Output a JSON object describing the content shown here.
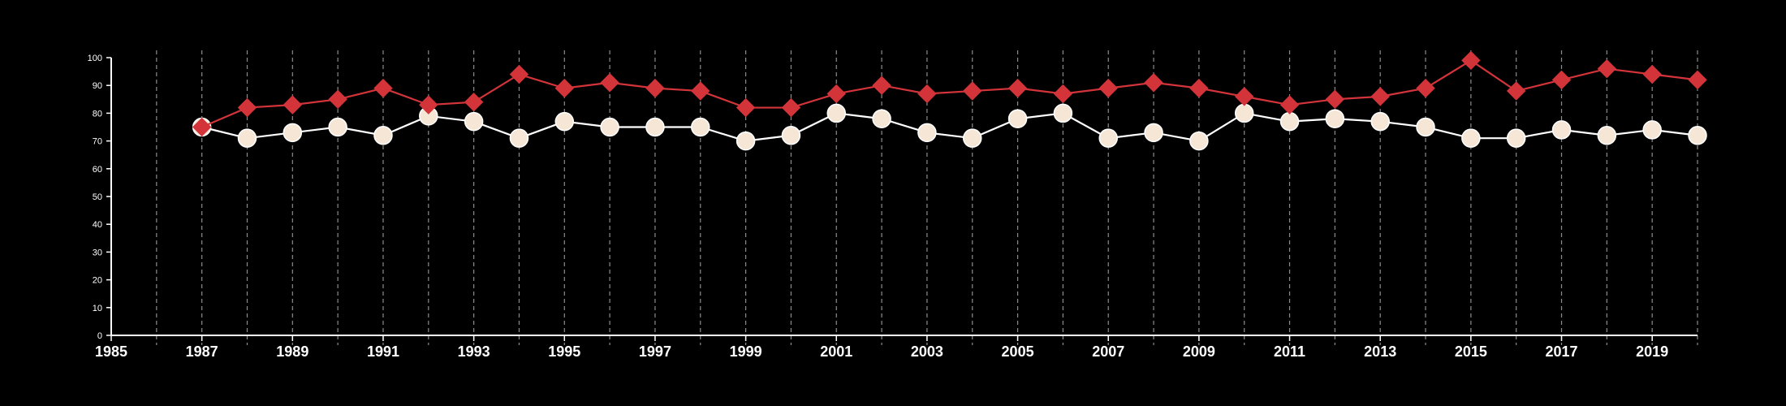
{
  "chart_data": {
    "type": "line",
    "title": "",
    "xlabel": "",
    "ylabel": "",
    "xlim": [
      1985,
      2020
    ],
    "ylim": [
      0,
      100
    ],
    "y_ticks": [
      0,
      10,
      20,
      30,
      40,
      50,
      60,
      70,
      80,
      90,
      100
    ],
    "x_tick_labels": [
      1985,
      1987,
      1989,
      1991,
      1993,
      1995,
      1997,
      1999,
      2001,
      2003,
      2005,
      2007,
      2009,
      2011,
      2013,
      2015,
      2017,
      2019
    ],
    "x_gridlines": [
      1986,
      1987,
      1988,
      1989,
      1990,
      1991,
      1992,
      1993,
      1994,
      1995,
      1996,
      1997,
      1998,
      1999,
      2000,
      2001,
      2002,
      2003,
      2004,
      2005,
      2006,
      2007,
      2008,
      2009,
      2010,
      2011,
      2012,
      2013,
      2014,
      2015,
      2016,
      2017,
      2018,
      2019,
      2020
    ],
    "grid": "vertical dashed",
    "legend": "none",
    "background_color": "#000000",
    "x": [
      1987,
      1988,
      1989,
      1990,
      1991,
      1992,
      1993,
      1994,
      1995,
      1996,
      1997,
      1998,
      1999,
      2000,
      2001,
      2002,
      2003,
      2004,
      2005,
      2006,
      2007,
      2008,
      2009,
      2010,
      2011,
      2012,
      2013,
      2014,
      2015,
      2016,
      2017,
      2018,
      2019,
      2020
    ],
    "series": [
      {
        "color": "#f5e6d6",
        "line_color": "#ffffff",
        "marker": "circle",
        "values": [
          75,
          71,
          73,
          75,
          72,
          79,
          77,
          71,
          77,
          75,
          75,
          75,
          70,
          72,
          80,
          78,
          73,
          71,
          78,
          80,
          71,
          73,
          70,
          80,
          77,
          78,
          77,
          75,
          71,
          71,
          74,
          72,
          74,
          72
        ]
      },
      {
        "color": "#d2343a",
        "line_color": "#d2343a",
        "marker": "diamond",
        "values": [
          75,
          82,
          83,
          85,
          89,
          83,
          84,
          94,
          89,
          91,
          89,
          88,
          82,
          82,
          87,
          90,
          87,
          88,
          89,
          87,
          89,
          91,
          89,
          86,
          83,
          85,
          86,
          89,
          99,
          88,
          92,
          96,
          94,
          92
        ]
      }
    ]
  }
}
